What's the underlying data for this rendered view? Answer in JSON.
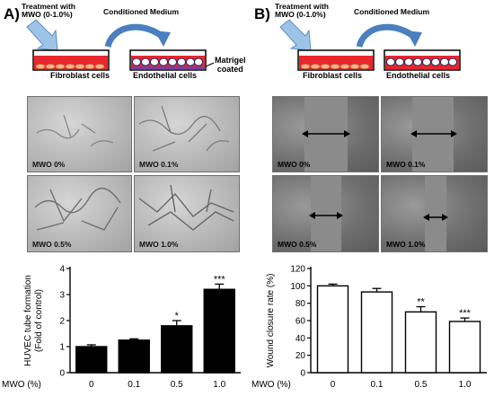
{
  "panel_a": {
    "letter": "A)",
    "treatment": "Treatment with\nMWO (0-1.0%)",
    "conditioned": "Conditioned Medium",
    "fibroblast": "Fibroblast cells",
    "endothelial": "Endothelial cells",
    "matrigel": "Matrigel\ncoated",
    "micro_labels": [
      "MWO 0%",
      "MWO 0.1%",
      "MWO 0.5%",
      "MWO 1.0%"
    ]
  },
  "panel_b": {
    "letter": "B)",
    "treatment": "Treatment with\nMWO (0-1.0%)",
    "conditioned": "Conditioned  Medium",
    "fibroblast": "Fibroblast cells",
    "endothelial": "Endothelial cells",
    "micro_labels": [
      "MWO 0%",
      "MWO 0.1%",
      "MWO 0.5%",
      "MWO 1.0%"
    ]
  },
  "chart_data": [
    {
      "type": "bar",
      "xlabel": "MWO  (%)",
      "ylabel": "HUVEC tube formation\n(Fold of control)",
      "categories": [
        "0",
        "0.1",
        "0.5",
        "1.0"
      ],
      "values": [
        1.0,
        1.25,
        1.8,
        3.2
      ],
      "errors": [
        0.07,
        0.05,
        0.2,
        0.2
      ],
      "significance": [
        "",
        "",
        "*",
        "***"
      ],
      "ylim": [
        0,
        4
      ],
      "yticks": [
        0,
        1,
        2,
        3,
        4
      ],
      "bar_color": "#000000"
    },
    {
      "type": "bar",
      "xlabel": "MWO  (%)",
      "ylabel": "Wound closure rate (%)",
      "categories": [
        "0",
        "0.1",
        "0.5",
        "1.0"
      ],
      "values": [
        100,
        93,
        70,
        59
      ],
      "errors": [
        2,
        4,
        6,
        4
      ],
      "significance": [
        "",
        "",
        "**",
        "***"
      ],
      "ylim": [
        0,
        120
      ],
      "yticks": [
        0,
        20,
        40,
        60,
        80,
        100,
        120
      ],
      "bar_color": "#ffffff"
    }
  ]
}
